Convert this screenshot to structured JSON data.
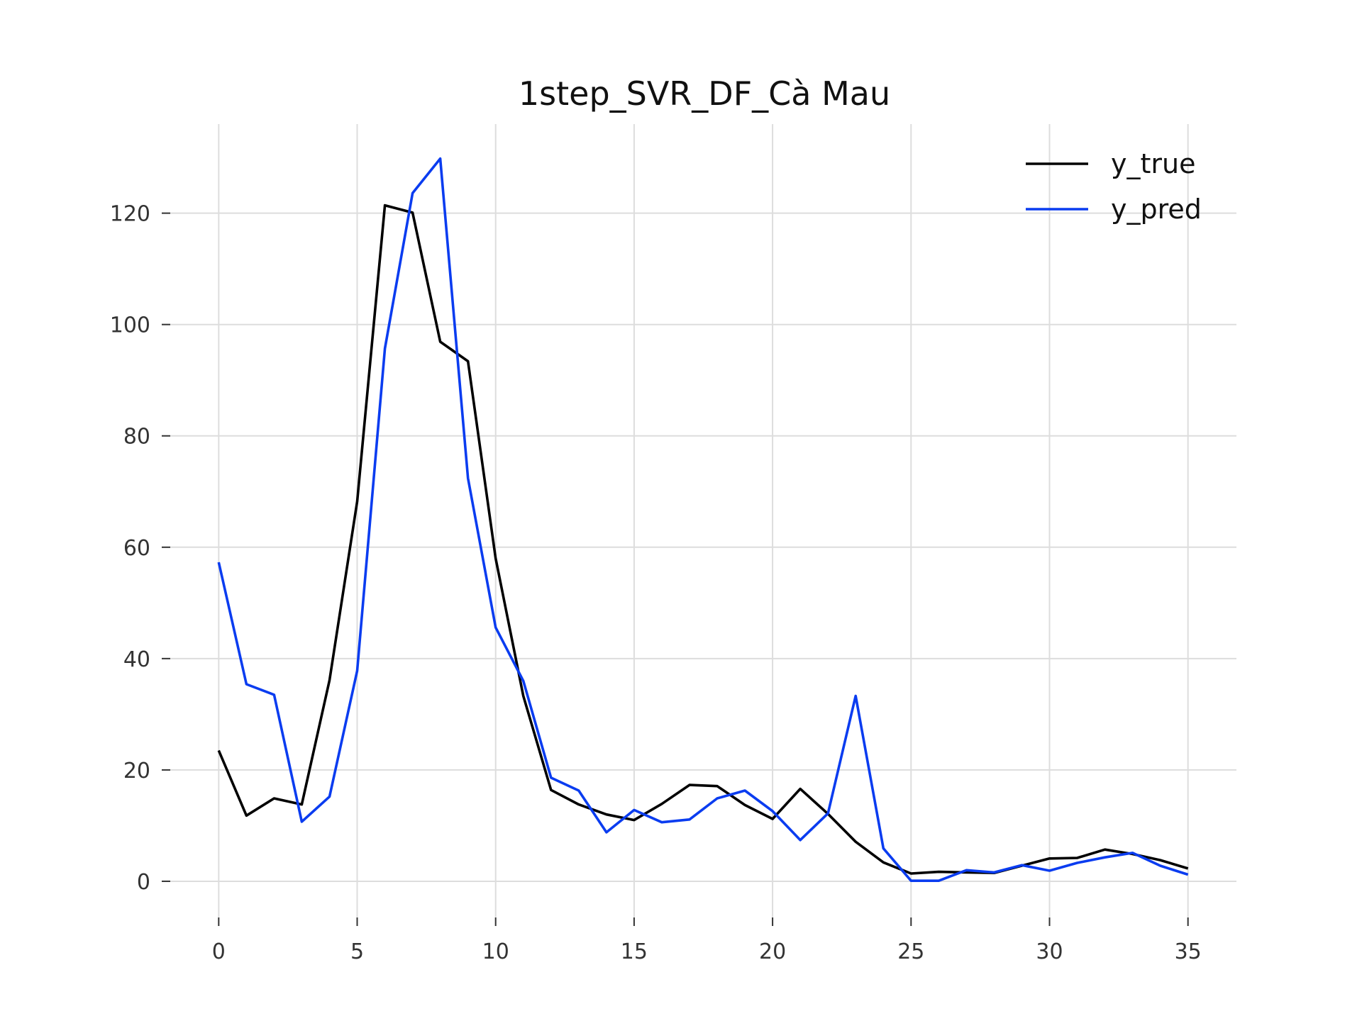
{
  "chart_data": {
    "type": "line",
    "title": "1step_SVR_DF_Cà Mau",
    "xlabel": "",
    "ylabel": "",
    "xlim": [
      -1.75,
      36.75
    ],
    "ylim": [
      -6.5,
      136
    ],
    "x_ticks": [
      0,
      5,
      10,
      15,
      20,
      25,
      30,
      35
    ],
    "y_ticks": [
      0,
      20,
      40,
      60,
      80,
      100,
      120
    ],
    "grid": true,
    "legend_position": "top-right",
    "x": [
      0,
      1,
      2,
      3,
      4,
      5,
      6,
      7,
      8,
      9,
      10,
      11,
      12,
      13,
      14,
      15,
      16,
      17,
      18,
      19,
      20,
      21,
      22,
      23,
      24,
      25,
      26,
      27,
      28,
      29,
      30,
      31,
      32,
      33,
      34,
      35
    ],
    "series": [
      {
        "name": "y_true",
        "color": "#000000",
        "values": [
          23.5,
          11.8,
          14.9,
          13.8,
          36.1,
          68.2,
          121.4,
          120.1,
          96.9,
          93.4,
          58.0,
          33.3,
          16.4,
          13.8,
          12.0,
          11.0,
          13.9,
          17.3,
          17.1,
          13.7,
          11.2,
          16.6,
          12.1,
          7.1,
          3.4,
          1.4,
          1.7,
          1.6,
          1.5,
          2.8,
          4.1,
          4.2,
          5.7,
          4.9,
          3.8,
          2.3
        ]
      },
      {
        "name": "y_pred",
        "color": "#0a3cf0",
        "values": [
          57.3,
          35.4,
          33.5,
          10.7,
          15.2,
          37.8,
          95.7,
          123.6,
          129.8,
          72.4,
          45.6,
          36.0,
          18.6,
          16.3,
          8.8,
          12.8,
          10.6,
          11.1,
          14.9,
          16.3,
          12.6,
          7.4,
          12.2,
          33.3,
          5.9,
          0.1,
          0.1,
          2.0,
          1.6,
          2.9,
          1.9,
          3.3,
          4.3,
          5.1,
          2.8,
          1.2
        ]
      }
    ]
  }
}
